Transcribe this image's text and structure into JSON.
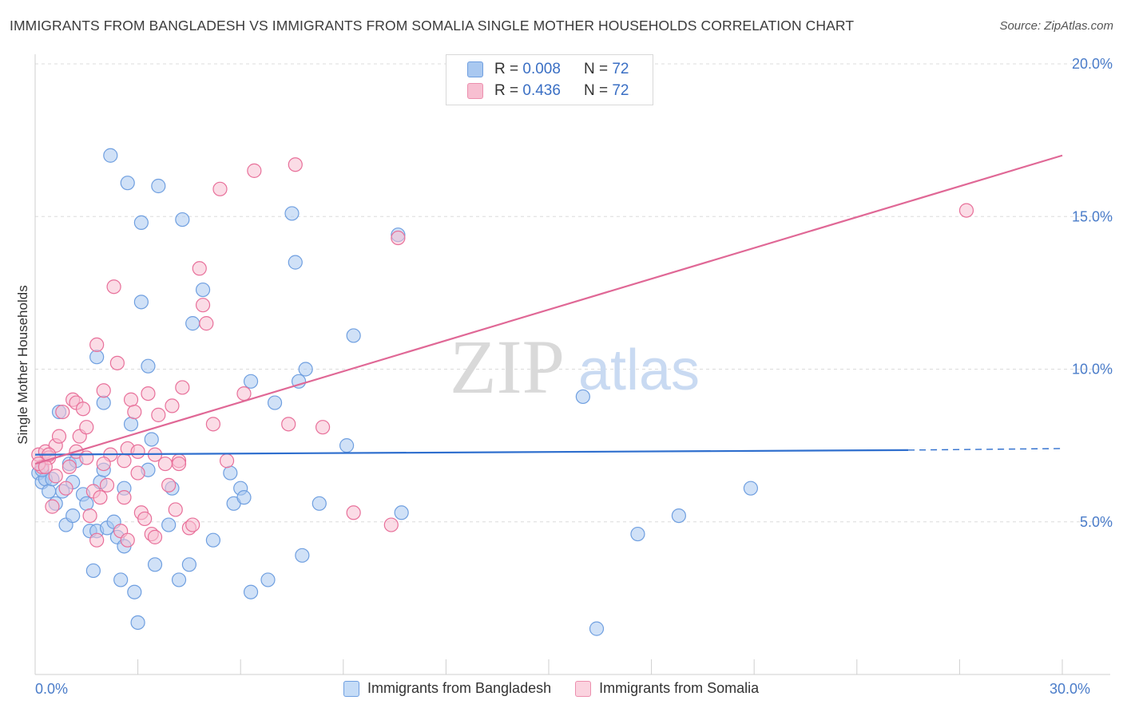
{
  "title": "IMMIGRANTS FROM BANGLADESH VS IMMIGRANTS FROM SOMALIA SINGLE MOTHER HOUSEHOLDS CORRELATION CHART",
  "source": "Source: ZipAtlas.com",
  "legend_top": {
    "rows": [
      {
        "r_label": "R =",
        "r_value": "0.008",
        "n_label": "N =",
        "n_value": "72",
        "color": "#a9c8f0",
        "border": "#6f9fe0"
      },
      {
        "r_label": "R =",
        "r_value": "0.436",
        "n_label": "N =",
        "n_value": "72",
        "color": "#f7bfd1",
        "border": "#ec8fae"
      }
    ]
  },
  "legend_bottom": {
    "items": [
      {
        "label": "Immigrants from Bangladesh",
        "color": "#c5dcf7",
        "border": "#6f9fe0"
      },
      {
        "label": "Immigrants from Somalia",
        "color": "#fbd3df",
        "border": "#ec8fae"
      }
    ]
  },
  "watermark": {
    "zip": "ZIP",
    "atlas": "atlas"
  },
  "chart_data": {
    "type": "scatter",
    "xlabel": "",
    "ylabel": "Single Mother Households",
    "xlim": [
      0,
      30
    ],
    "ylim": [
      0,
      20
    ],
    "x_tick_labels": [
      {
        "value": 0,
        "label": "0.0%"
      },
      {
        "value": 30,
        "label": "30.0%"
      }
    ],
    "y_tick_labels": [
      {
        "value": 5,
        "label": "5.0%"
      },
      {
        "value": 10,
        "label": "10.0%"
      },
      {
        "value": 15,
        "label": "15.0%"
      },
      {
        "value": 20,
        "label": "20.0%"
      }
    ],
    "grid": true,
    "series": [
      {
        "name": "Immigrants from Bangladesh",
        "color": "#6f9fe0",
        "fill": "#a9c8f0",
        "trend": {
          "x": [
            0,
            25.5
          ],
          "y": [
            7.2,
            7.35
          ],
          "dash_to_x": 30,
          "dash_to_y": 7.4
        },
        "points": [
          [
            0.1,
            6.6
          ],
          [
            0.2,
            6.3
          ],
          [
            0.3,
            6.4
          ],
          [
            0.4,
            6.0
          ],
          [
            0.5,
            6.4
          ],
          [
            0.6,
            5.6
          ],
          [
            0.7,
            8.6
          ],
          [
            0.8,
            6.0
          ],
          [
            0.9,
            4.9
          ],
          [
            1.0,
            6.9
          ],
          [
            1.1,
            6.3
          ],
          [
            1.1,
            5.2
          ],
          [
            1.2,
            7.0
          ],
          [
            1.4,
            5.9
          ],
          [
            1.5,
            5.6
          ],
          [
            1.6,
            4.7
          ],
          [
            1.7,
            3.4
          ],
          [
            1.8,
            4.7
          ],
          [
            1.8,
            10.4
          ],
          [
            1.9,
            6.3
          ],
          [
            2.0,
            6.7
          ],
          [
            2.0,
            8.9
          ],
          [
            2.1,
            4.8
          ],
          [
            2.2,
            17.0
          ],
          [
            2.3,
            5.0
          ],
          [
            2.4,
            4.5
          ],
          [
            2.5,
            3.1
          ],
          [
            2.6,
            6.1
          ],
          [
            2.6,
            4.2
          ],
          [
            2.7,
            16.1
          ],
          [
            2.8,
            8.2
          ],
          [
            2.9,
            2.7
          ],
          [
            3.0,
            1.7
          ],
          [
            3.1,
            14.8
          ],
          [
            3.1,
            12.2
          ],
          [
            3.3,
            6.7
          ],
          [
            3.3,
            10.1
          ],
          [
            3.4,
            7.7
          ],
          [
            3.5,
            3.6
          ],
          [
            3.6,
            16.0
          ],
          [
            3.9,
            4.9
          ],
          [
            4.0,
            6.1
          ],
          [
            4.2,
            3.1
          ],
          [
            4.3,
            14.9
          ],
          [
            4.5,
            3.6
          ],
          [
            4.6,
            11.5
          ],
          [
            4.9,
            12.6
          ],
          [
            5.2,
            4.4
          ],
          [
            5.7,
            6.6
          ],
          [
            5.8,
            5.6
          ],
          [
            6.0,
            6.1
          ],
          [
            6.1,
            5.8
          ],
          [
            6.3,
            9.6
          ],
          [
            6.3,
            2.7
          ],
          [
            6.8,
            3.1
          ],
          [
            7.0,
            8.9
          ],
          [
            7.5,
            15.1
          ],
          [
            7.6,
            13.5
          ],
          [
            7.7,
            9.6
          ],
          [
            7.8,
            3.9
          ],
          [
            7.9,
            10.0
          ],
          [
            8.3,
            5.6
          ],
          [
            9.1,
            7.5
          ],
          [
            9.3,
            11.1
          ],
          [
            10.6,
            14.4
          ],
          [
            10.7,
            5.3
          ],
          [
            16.0,
            9.1
          ],
          [
            16.4,
            1.5
          ],
          [
            17.6,
            4.6
          ],
          [
            18.8,
            5.2
          ],
          [
            20.9,
            6.1
          ],
          [
            0.2,
            6.7
          ]
        ]
      },
      {
        "name": "Immigrants from Somalia",
        "color": "#e8709a",
        "fill": "#f7bfd1",
        "trend": {
          "x": [
            0,
            30
          ],
          "y": [
            6.9,
            17.0
          ]
        },
        "points": [
          [
            0.1,
            7.2
          ],
          [
            0.2,
            6.8
          ],
          [
            0.3,
            7.3
          ],
          [
            0.4,
            7.1
          ],
          [
            0.5,
            5.5
          ],
          [
            0.6,
            7.5
          ],
          [
            0.7,
            7.8
          ],
          [
            0.8,
            8.6
          ],
          [
            0.9,
            6.1
          ],
          [
            1.0,
            6.8
          ],
          [
            1.1,
            9.0
          ],
          [
            1.2,
            8.9
          ],
          [
            1.3,
            7.8
          ],
          [
            1.4,
            8.7
          ],
          [
            1.5,
            8.1
          ],
          [
            1.6,
            5.2
          ],
          [
            1.7,
            6.0
          ],
          [
            1.8,
            4.4
          ],
          [
            1.8,
            10.8
          ],
          [
            1.9,
            5.8
          ],
          [
            2.0,
            9.3
          ],
          [
            2.1,
            6.2
          ],
          [
            2.2,
            7.2
          ],
          [
            2.3,
            12.7
          ],
          [
            2.4,
            10.2
          ],
          [
            2.5,
            4.7
          ],
          [
            2.6,
            5.8
          ],
          [
            2.7,
            4.4
          ],
          [
            2.7,
            7.4
          ],
          [
            2.8,
            9.0
          ],
          [
            2.9,
            8.6
          ],
          [
            3.0,
            6.6
          ],
          [
            3.1,
            5.3
          ],
          [
            3.2,
            5.1
          ],
          [
            3.3,
            9.2
          ],
          [
            3.4,
            4.6
          ],
          [
            3.5,
            7.2
          ],
          [
            3.5,
            4.5
          ],
          [
            3.6,
            8.5
          ],
          [
            3.8,
            6.9
          ],
          [
            3.9,
            6.2
          ],
          [
            4.0,
            8.8
          ],
          [
            4.1,
            5.4
          ],
          [
            4.2,
            7.0
          ],
          [
            4.3,
            9.4
          ],
          [
            4.5,
            4.8
          ],
          [
            4.6,
            4.9
          ],
          [
            4.8,
            13.3
          ],
          [
            4.9,
            12.1
          ],
          [
            5.0,
            11.5
          ],
          [
            5.2,
            8.2
          ],
          [
            5.4,
            15.9
          ],
          [
            5.6,
            7.0
          ],
          [
            6.1,
            9.2
          ],
          [
            6.4,
            16.5
          ],
          [
            7.4,
            8.2
          ],
          [
            7.6,
            16.7
          ],
          [
            8.4,
            8.1
          ],
          [
            9.3,
            5.3
          ],
          [
            10.4,
            4.9
          ],
          [
            10.6,
            14.3
          ],
          [
            27.2,
            15.2
          ],
          [
            0.1,
            6.9
          ],
          [
            0.3,
            6.8
          ],
          [
            0.4,
            7.2
          ],
          [
            1.2,
            7.3
          ],
          [
            2.0,
            6.9
          ],
          [
            0.6,
            6.5
          ],
          [
            1.5,
            7.1
          ],
          [
            3.0,
            7.3
          ],
          [
            4.2,
            6.9
          ],
          [
            2.6,
            7.0
          ]
        ]
      }
    ]
  }
}
